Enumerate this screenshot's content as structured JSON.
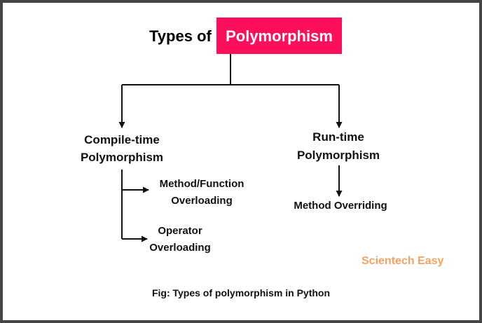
{
  "title": {
    "prefix": "Types of",
    "highlight": "Polymorphism",
    "highlight_color": "#ff0f5b"
  },
  "compile_time": {
    "line1": "Compile-time",
    "line2": "Polymorphism",
    "children": [
      {
        "line1": "Method/Function",
        "line2": "Overloading"
      },
      {
        "line1": "Operator",
        "line2": "Overloading"
      }
    ]
  },
  "run_time": {
    "line1": "Run-time",
    "line2": "Polymorphism",
    "children": [
      {
        "line1": "Method Overriding"
      }
    ]
  },
  "watermark": {
    "text": "Scientech Easy",
    "color": "#f4a261"
  },
  "caption": "Fig: Types of polymorphism in Python",
  "colors": {
    "line": "#111111",
    "frame": "#454545"
  }
}
